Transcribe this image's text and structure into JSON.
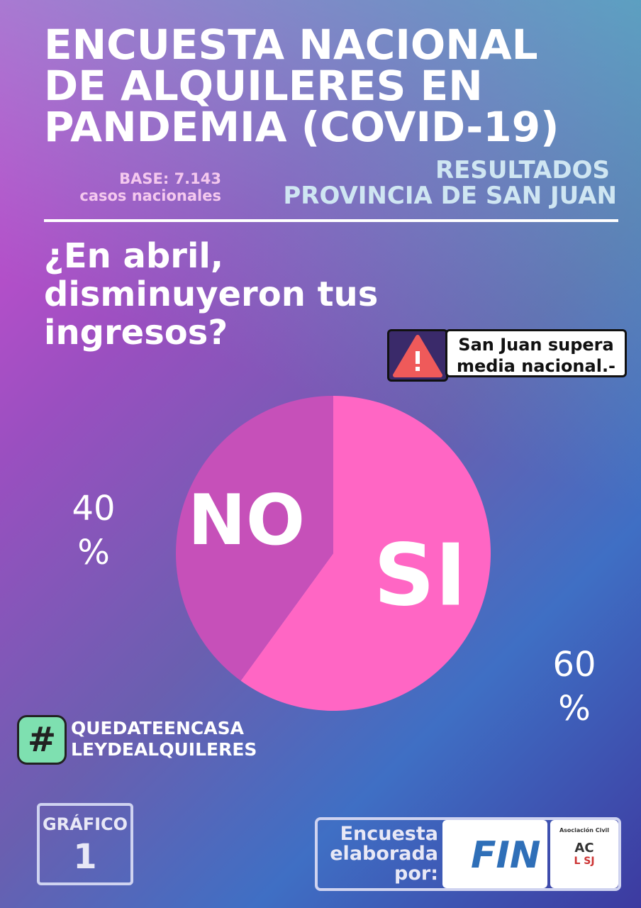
{
  "header": {
    "title": [
      "ENCUESTA NACIONAL",
      "DE ALQUILERES EN",
      "PANDEMIA (COVID-19)"
    ],
    "base": [
      "BASE: 7.143",
      "casos nacionales"
    ],
    "results": [
      "RESULTADOS",
      "PROVINCIA DE SAN JUAN"
    ]
  },
  "question": [
    "¿En abril,",
    "disminuyeron tus",
    "ingresos?"
  ],
  "warning": [
    "San Juan supera",
    "media nacional.-"
  ],
  "chart_data": {
    "type": "pie",
    "categories": [
      "SI",
      "NO"
    ],
    "values": [
      60,
      40
    ],
    "value_labels": [
      "60 %",
      "40 %"
    ],
    "colors": [
      "#ff66c4",
      "#c650b9"
    ]
  },
  "hashtags": [
    "QUEDATEENCASA",
    "LEYDEALQUILERES"
  ],
  "footer": {
    "chart_label": "GRÁFICO",
    "chart_number": "1",
    "made_by": [
      "Encuesta",
      "elaborada",
      "por:"
    ],
    "logo_fin": "FIN",
    "logo_ac": [
      "Asociación Civil",
      "AC",
      "L SJ"
    ]
  }
}
